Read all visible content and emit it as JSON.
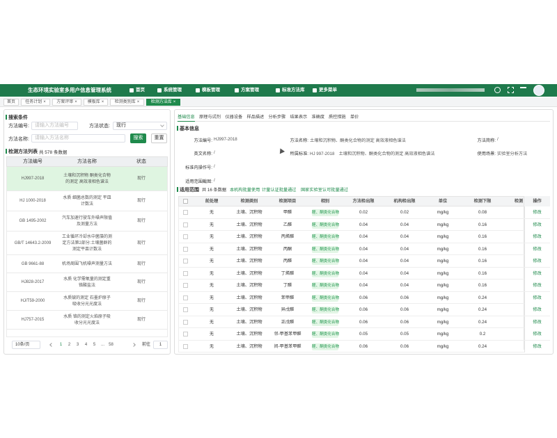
{
  "header": {
    "title": "生态环境实验室多用户信息管理系统",
    "nav": [
      "首页",
      "系统管理",
      "模板管理",
      "方案管理",
      "标准方法库",
      "更多菜单"
    ]
  },
  "tabs": [
    "首页",
    "任务计划",
    "方案评审",
    "模板库",
    "检测类别库",
    "检测方法库"
  ],
  "search": {
    "title": "搜索条件",
    "code_label": "方法编号:",
    "code_placeholder": "请输入方法编号",
    "status_label": "方法状态:",
    "status_value": "现行",
    "name_label": "方法名称:",
    "name_placeholder": "请输入方法名称",
    "buttons": [
      "搜索",
      "重置"
    ]
  },
  "method_list": {
    "title": "检测方法列表",
    "count": "共 578 条数据",
    "columns": [
      "方法编号",
      "方法名称",
      "状态"
    ],
    "rows": [
      [
        "HJ997-2018",
        "土壤和沉积物 酮类化合物的测定 高效液相色谱法",
        "现行"
      ],
      [
        "HJ 1000-2018",
        "水质 细菌总数的测定 平皿计数法",
        "现行"
      ],
      [
        "GB 1495-2002",
        "汽车加速行驶车外噪声限值及测量方法",
        "现行"
      ],
      [
        "GB/T 14643.2-2009",
        "工业循环冷却水中菌藻的测定方法第2部分:土壤菌群的测定平皿计数法",
        "现行"
      ],
      [
        "GB 9661-88",
        "机场周围飞机噪声测量方法",
        "现行"
      ],
      [
        "HJ828-2017",
        "水质 化学需氧量的测定重铬酸盐法",
        "现行"
      ],
      [
        "HJ/T59-2000",
        "水质铍的测定 石墨炉原子吸收分光光度法",
        "现行"
      ],
      [
        "HJ757-2015",
        "水质 铬的测定火焰原子吸收分光光度法",
        "现行"
      ]
    ]
  },
  "pagination": {
    "page_size": "10条/页",
    "pages": [
      "1",
      "2",
      "3",
      "4",
      "5",
      "...",
      "58"
    ],
    "goto_label": "前往",
    "goto_value": "1"
  },
  "detail": {
    "tabs": [
      "基础信息",
      "原理与试剂",
      "仪器设备",
      "样品描述",
      "分析步骤",
      "结果表示",
      "准确度",
      "质控措施",
      "单价"
    ],
    "section_title": "基本信息",
    "fields": [
      {
        "label": "方法编号:",
        "value": "HJ997-2018"
      },
      {
        "label": "方法名称:",
        "value": "土壤和沉积物、酮类化合物的测定 高效液相色谱法"
      },
      {
        "label": "方法简称:",
        "value": "/"
      },
      {
        "label": "英文名称:",
        "value": "/"
      },
      {
        "label": "所属标准:",
        "value": "HJ 997-2018　土壤和沉积物、酮类化合物的测定 高效液相色谱法"
      },
      {
        "label": "使用场景:",
        "value": "实验室分析方法"
      },
      {
        "label": "标准内操作号:",
        "value": "/"
      },
      {
        "label": "适用范围截图:",
        "value": "/"
      }
    ]
  },
  "scope": {
    "title": "适用范围",
    "count": "共 16 条数据",
    "actions": [
      "本机构批量使用",
      "计量认证批量通过",
      "国家实验室认可批量通过"
    ],
    "columns": [
      "前处理",
      "检测类别",
      "检测项目",
      "相别",
      "方法检出限",
      "机构检出限",
      "单位",
      "检测下限",
      "检测",
      "操作"
    ],
    "row_action": "修改",
    "rows": [
      [
        "无",
        "土壤、沉积物",
        "甲醛",
        "醛、酮类化合物",
        "0.02",
        "0.02",
        "mg/kg",
        "0.08"
      ],
      [
        "无",
        "土壤、沉积物",
        "乙醛",
        "醛、酮类化合物",
        "0.04",
        "0.04",
        "mg/kg",
        "0.16"
      ],
      [
        "无",
        "土壤、沉积物",
        "丙烯醛",
        "醛、酮类化合物",
        "0.04",
        "0.04",
        "mg/kg",
        "0.16"
      ],
      [
        "无",
        "土壤、沉积物",
        "丙酮",
        "醛、酮类化合物",
        "0.04",
        "0.04",
        "mg/kg",
        "0.16"
      ],
      [
        "无",
        "土壤、沉积物",
        "丙醛",
        "醛、酮类化合物",
        "0.04",
        "0.04",
        "mg/kg",
        "0.16"
      ],
      [
        "无",
        "土壤、沉积物",
        "丁烯醛",
        "醛、酮类化合物",
        "0.04",
        "0.04",
        "mg/kg",
        "0.16"
      ],
      [
        "无",
        "土壤、沉积物",
        "丁醛",
        "醛、酮类化合物",
        "0.04",
        "0.04",
        "mg/kg",
        "0.16"
      ],
      [
        "无",
        "土壤、沉积物",
        "苯甲醛",
        "醛、酮类化合物",
        "0.06",
        "0.06",
        "mg/kg",
        "0.24"
      ],
      [
        "无",
        "土壤、沉积物",
        "异戊醛",
        "醛、酮类化合物",
        "0.06",
        "0.06",
        "mg/kg",
        "0.24"
      ],
      [
        "无",
        "土壤、沉积物",
        "正戊醛",
        "醛、酮类化合物",
        "0.06",
        "0.06",
        "mg/kg",
        "0.24"
      ],
      [
        "无",
        "土壤、沉积物",
        "邻-甲基苯甲醛",
        "醛、酮类化合物",
        "0.05",
        "0.05",
        "mg/kg",
        "0.2"
      ],
      [
        "无",
        "土壤、沉积物",
        "间-甲基苯甲醛",
        "醛、酮类化合物",
        "0.06",
        "0.06",
        "mg/kg",
        "0.24"
      ]
    ]
  }
}
